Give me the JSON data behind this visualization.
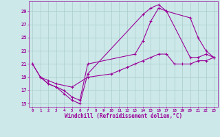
{
  "xlabel": "Windchill (Refroidissement éolien,°C)",
  "bg_color": "#cce8e8",
  "grid_color": "#aacccc",
  "line_color": "#990099",
  "xlim": [
    -0.5,
    23.5
  ],
  "ylim": [
    14.5,
    30.5
  ],
  "xticks": [
    0,
    1,
    2,
    3,
    4,
    5,
    6,
    7,
    8,
    9,
    10,
    11,
    12,
    13,
    14,
    15,
    16,
    17,
    18,
    19,
    20,
    21,
    22,
    23
  ],
  "yticks": [
    15,
    17,
    19,
    21,
    23,
    25,
    27,
    29
  ],
  "series1_x": [
    0,
    1,
    2,
    3,
    4,
    5,
    6,
    7,
    14,
    15,
    16,
    17,
    20,
    21,
    22,
    23
  ],
  "series1_y": [
    21,
    19,
    18,
    17.5,
    16.5,
    15.5,
    15,
    19.5,
    28.5,
    29.5,
    30,
    29,
    28,
    25,
    23,
    22
  ],
  "series2_x": [
    1,
    2,
    3,
    4,
    5,
    6,
    7,
    13,
    14,
    15,
    16,
    17,
    20,
    21,
    22,
    23
  ],
  "series2_y": [
    19,
    18,
    17.5,
    17,
    16,
    15.5,
    21,
    22.5,
    24.5,
    27.5,
    29.5,
    29,
    22,
    22,
    22.5,
    22
  ],
  "series3_x": [
    0,
    1,
    2,
    3,
    5,
    7,
    10,
    11,
    12,
    13,
    14,
    15,
    16,
    17,
    18,
    19,
    20,
    21,
    22,
    23
  ],
  "series3_y": [
    21,
    19,
    18.5,
    18,
    17.5,
    19,
    19.5,
    20,
    20.5,
    21,
    21.5,
    22,
    22.5,
    22.5,
    21,
    21,
    21,
    21.5,
    21.5,
    22
  ]
}
